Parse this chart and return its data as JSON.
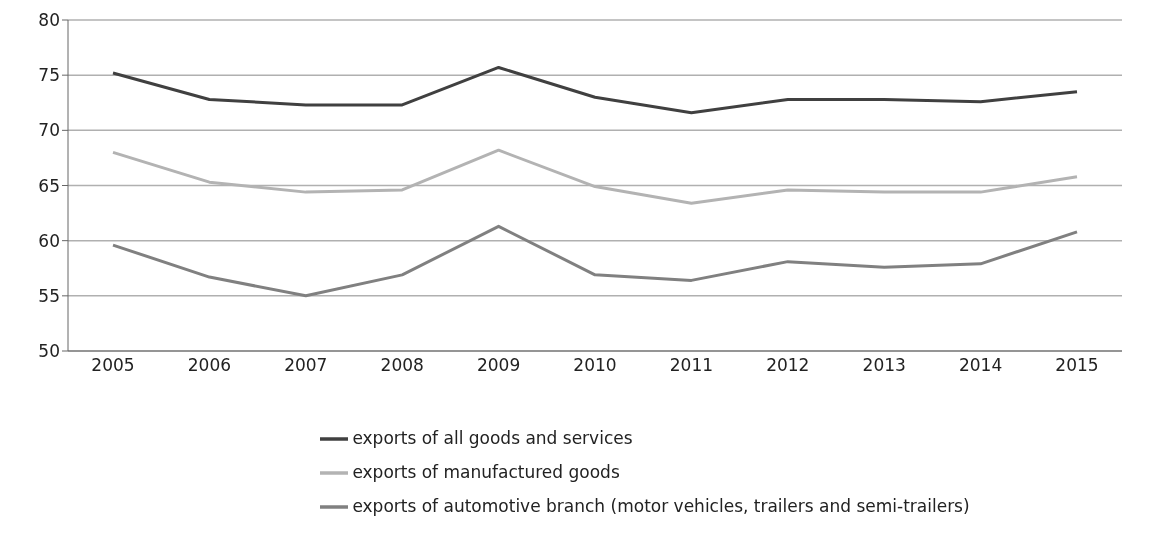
{
  "chart_data": {
    "type": "line",
    "categories": [
      "2005",
      "2006",
      "2007",
      "2008",
      "2009",
      "2010",
      "2011",
      "2012",
      "2013",
      "2014",
      "2015"
    ],
    "series": [
      {
        "name": "exports of all goods and services",
        "color": "#404040",
        "values": [
          75.2,
          72.8,
          72.3,
          72.3,
          75.7,
          73.0,
          71.6,
          72.8,
          72.8,
          72.6,
          73.5
        ]
      },
      {
        "name": "exports of manufactured goods",
        "color": "#b3b3b3",
        "values": [
          68.0,
          65.3,
          64.4,
          64.6,
          68.2,
          64.9,
          63.4,
          64.6,
          64.4,
          64.4,
          65.8
        ]
      },
      {
        "name": "exports of automotive branch (motor vehicles, trailers and semi-trailers)",
        "color": "#808080",
        "values": [
          59.6,
          56.7,
          55.0,
          56.9,
          61.3,
          56.9,
          56.4,
          58.1,
          57.6,
          57.9,
          60.8
        ]
      }
    ],
    "ylim": [
      50,
      80
    ],
    "yticks": [
      50,
      55,
      60,
      65,
      70,
      75,
      80
    ],
    "grid": "y",
    "legend": "bottom",
    "marker": "none",
    "line_style": "solid"
  }
}
